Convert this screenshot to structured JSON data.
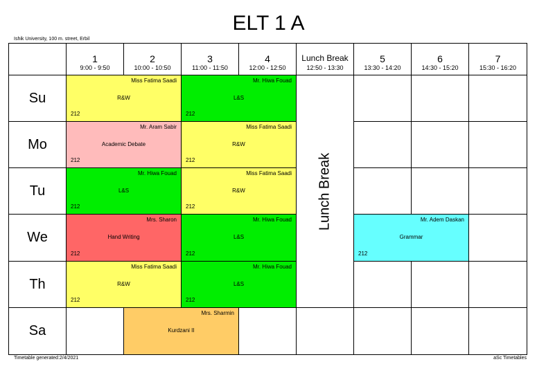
{
  "title": "ELT 1 A",
  "school": "Ishik University, 100 m. street, Erbil",
  "footer": {
    "generated": "Timetable generated:2/4/2021",
    "app": "aSc Timetables"
  },
  "periods": [
    {
      "num": "1",
      "time": "9:00 - 9:50"
    },
    {
      "num": "2",
      "time": "10:00 - 10:50"
    },
    {
      "num": "3",
      "time": "11:00 - 11:50"
    },
    {
      "num": "4",
      "time": "12:00 - 12:50"
    },
    {
      "num": "Lunch Break",
      "time": "12:50 - 13:30"
    },
    {
      "num": "5",
      "time": "13:30 - 14:20"
    },
    {
      "num": "6",
      "time": "14:30 - 15:20"
    },
    {
      "num": "7",
      "time": "15:30 - 16:20"
    }
  ],
  "lunch_label": "Lunch Break",
  "days": [
    "Su",
    "Mo",
    "Tu",
    "We",
    "Th",
    "Sa"
  ],
  "lessons": [
    {
      "day": "Su",
      "teacher": "Miss Fatima Saadi",
      "subject": "R&W",
      "room": "212",
      "color": "#ffff66"
    },
    {
      "day": "Su",
      "teacher": "Mr. Hiwa Fouad",
      "subject": "L&S",
      "room": "212",
      "color": "#00ee00"
    },
    {
      "day": "Mo",
      "teacher": "Mr. Aram Sabir",
      "subject": "Academic Debate",
      "room": "212",
      "color": "#ffbbbb"
    },
    {
      "day": "Mo",
      "teacher": "Miss Fatima Saadi",
      "subject": "R&W",
      "room": "212",
      "color": "#ffff66"
    },
    {
      "day": "Tu",
      "teacher": "Mr. Hiwa Fouad",
      "subject": "L&S",
      "room": "212",
      "color": "#00ee00"
    },
    {
      "day": "Tu",
      "teacher": "Miss Fatima Saadi",
      "subject": "R&W",
      "room": "212",
      "color": "#ffff66"
    },
    {
      "day": "We",
      "teacher": "Mrs. Sharon",
      "subject": "Hand Writing",
      "room": "212",
      "color": "#ff6666"
    },
    {
      "day": "We",
      "teacher": "Mr. Hiwa Fouad",
      "subject": "L&S",
      "room": "212",
      "color": "#00ee00"
    },
    {
      "day": "We",
      "teacher": "Mr. Adem Daskan",
      "subject": "Grammar",
      "room": "212",
      "color": "#66ffff"
    },
    {
      "day": "Th",
      "teacher": "Miss Fatima Saadi",
      "subject": "R&W",
      "room": "212",
      "color": "#ffff66"
    },
    {
      "day": "Th",
      "teacher": "Mr. Hiwa Fouad",
      "subject": "L&S",
      "room": "212",
      "color": "#00ee00"
    },
    {
      "day": "Sa",
      "teacher": "Mrs. Sharmin",
      "subject": "Kurdzani II",
      "room": "",
      "color": "#ffcc66"
    }
  ]
}
